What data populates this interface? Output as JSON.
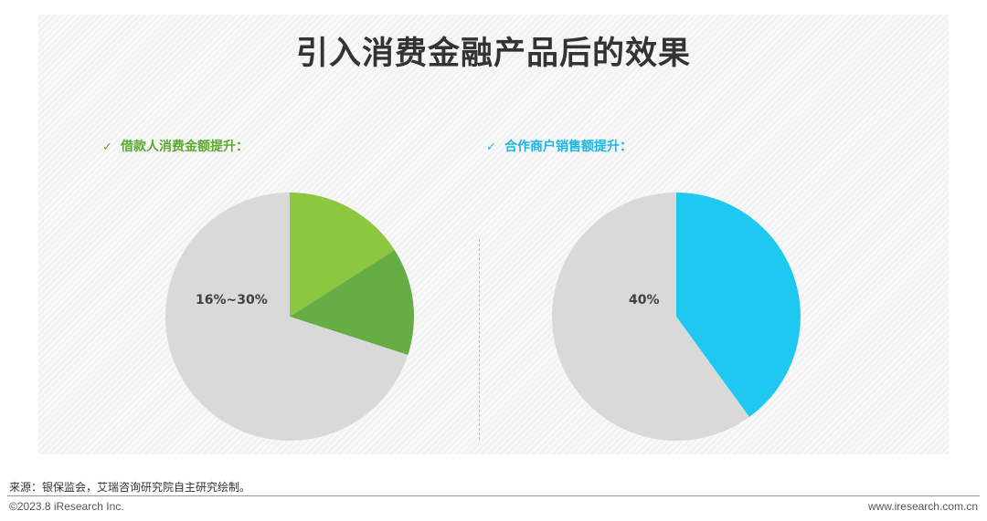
{
  "title": "引入消费金融产品后的效果",
  "source": "来源：银保监会，艾瑞咨询研究院自主研究绘制。",
  "copyright": "©2023.8 iResearch Inc.",
  "website": "www.iresearch.com.cn",
  "colors": {
    "grey": "#d9d9d9",
    "light_green": "#8dc63f",
    "dark_green": "#67ad45",
    "cyan": "#1ec8f0",
    "green_text": "#5aaa2c",
    "cyan_text": "#17b7e6"
  },
  "chart_data": [
    {
      "type": "pie",
      "title": "借款人消费金额提升：",
      "check_icon": "✓",
      "data_label": "16%~30%",
      "slices": [
        {
          "value": 16,
          "color": "#8dc63f"
        },
        {
          "value": 14,
          "color": "#67ad45"
        },
        {
          "value": 70,
          "color": "#d9d9d9"
        }
      ]
    },
    {
      "type": "pie",
      "title": "合作商户销售额提升：",
      "check_icon": "✓",
      "data_label": "40%",
      "slices": [
        {
          "value": 40,
          "color": "#1ec8f0"
        },
        {
          "value": 60,
          "color": "#d9d9d9"
        }
      ]
    }
  ]
}
